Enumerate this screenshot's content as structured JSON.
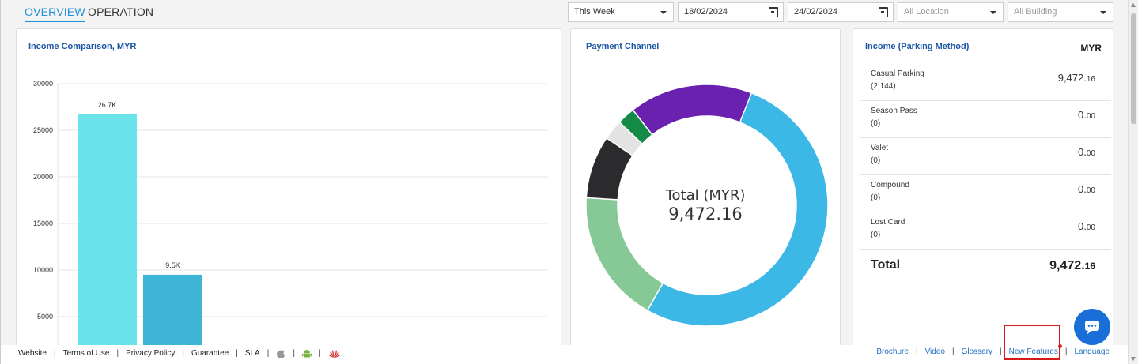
{
  "tabs": {
    "overview": "OVERVIEW",
    "operation": "OPERATION"
  },
  "filters": {
    "period": "This Week",
    "date_from": "18/02/2024",
    "date_to": "24/02/2024",
    "location": "All Location",
    "building": "All Building"
  },
  "income_comparison": {
    "title": "Income Comparison, MYR",
    "chart_data": {
      "type": "bar",
      "values": [
        26700,
        9500
      ],
      "data_labels": [
        "26.7K",
        "9.5K"
      ],
      "colors": [
        "#6ae3ea",
        "#3eb5d6"
      ],
      "yticks": [
        "30000",
        "25000",
        "20000",
        "15000",
        "10000",
        "5000"
      ],
      "ylim": [
        0,
        30000
      ],
      "grid": true
    }
  },
  "payment_channel": {
    "title": "Payment Channel",
    "center_label": "Total (MYR)",
    "center_value": "9,472.16",
    "chart_data": {
      "type": "pie",
      "slices": [
        {
          "value": 0.582,
          "color": "#3bb8e6"
        },
        {
          "value": 0.178,
          "color": "#86c896"
        },
        {
          "value": 0.084,
          "color": "#2b2b2e"
        },
        {
          "value": 0.027,
          "color": "#e3e3e3"
        },
        {
          "value": 0.024,
          "color": "#138a45"
        },
        {
          "value": 0.165,
          "color": "#6a21b0"
        }
      ]
    }
  },
  "parking_method": {
    "title": "Income (Parking Method)",
    "currency": "MYR",
    "rows": [
      {
        "name": "Casual Parking",
        "count": "(2,144)",
        "amount_main": "9,472.",
        "amount_dec": "16"
      },
      {
        "name": "Season Pass",
        "count": "(0)",
        "amount_main": "0.",
        "amount_dec": "00"
      },
      {
        "name": "Valet",
        "count": "(0)",
        "amount_main": "0.",
        "amount_dec": "00"
      },
      {
        "name": "Compound",
        "count": "(0)",
        "amount_main": "0.",
        "amount_dec": "00"
      },
      {
        "name": "Lost Card",
        "count": "(0)",
        "amount_main": "0.",
        "amount_dec": "00"
      }
    ],
    "total_label": "Total",
    "total_main": "9,472.",
    "total_dec": "16"
  },
  "footer": {
    "left": [
      "Website",
      "Terms of Use",
      "Privacy Policy",
      "Guarantee",
      "SLA"
    ],
    "right": [
      "Brochure",
      "Video",
      "Glossary",
      "New Features",
      "Language"
    ]
  },
  "icons": [
    "apple-icon",
    "android-icon",
    "huawei-icon",
    "chat-icon",
    "calendar-icon"
  ]
}
